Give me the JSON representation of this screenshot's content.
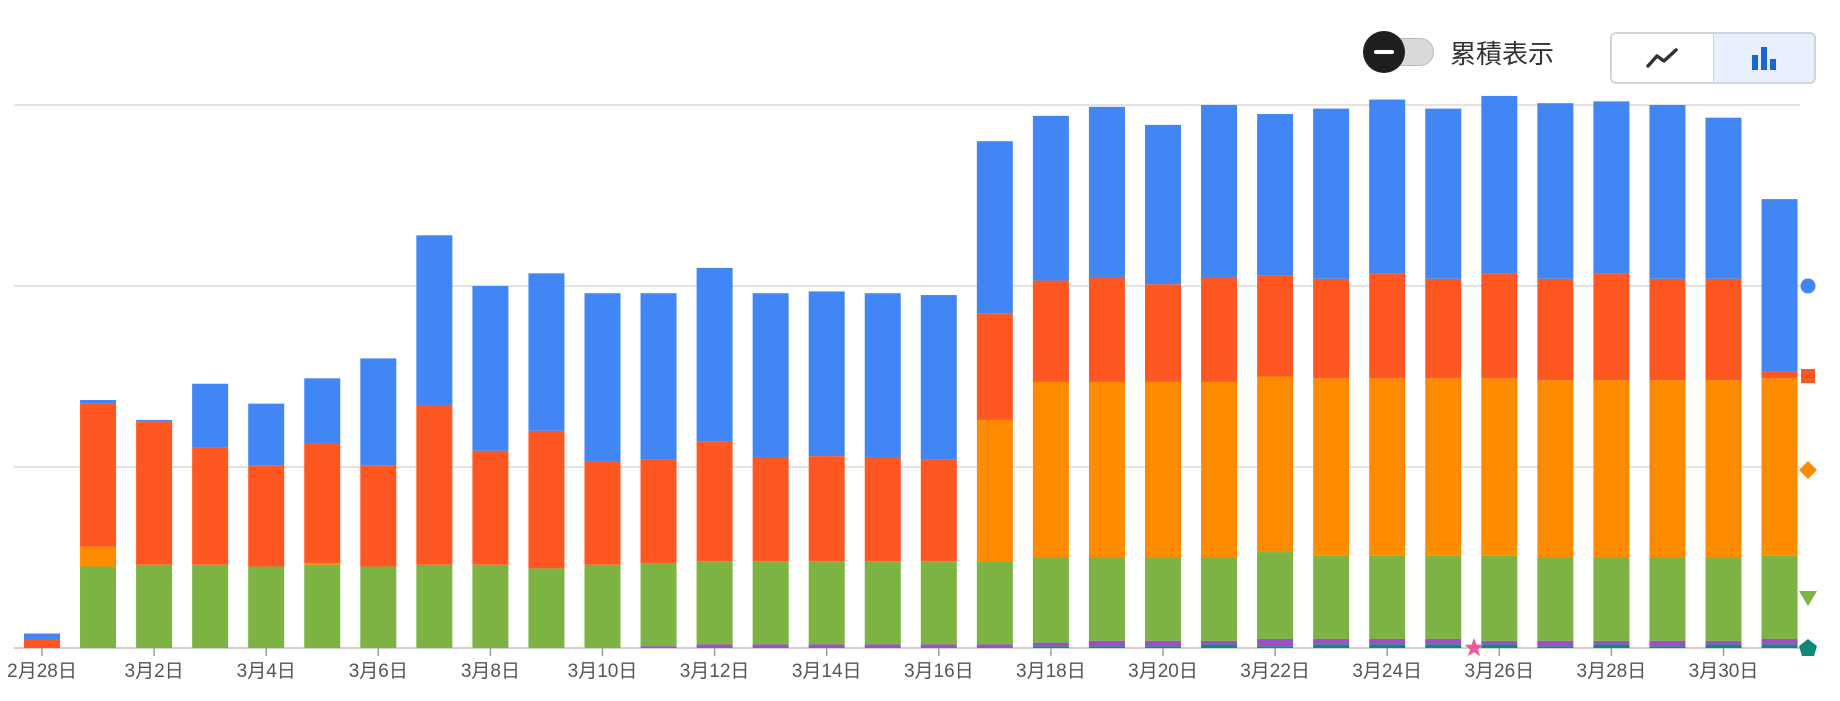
{
  "controls": {
    "cumulative_toggle_label": "累積表示",
    "view_buttons": [
      {
        "icon": "line-chart-icon",
        "active": false
      },
      {
        "icon": "bar-chart-icon",
        "active": true
      }
    ]
  },
  "chart_data": {
    "type": "bar",
    "stacked": true,
    "grid": true,
    "legend": "right-side markers (circle, square, diamond, triangle, pentagon)",
    "categories": [
      "2月28日",
      "3月1日",
      "3月2日",
      "3月3日",
      "3月4日",
      "3月5日",
      "3月6日",
      "3月7日",
      "3月8日",
      "3月9日",
      "3月10日",
      "3月11日",
      "3月12日",
      "3月13日",
      "3月14日",
      "3月15日",
      "3月16日",
      "3月17日",
      "3月18日",
      "3月19日",
      "3月20日",
      "3月21日",
      "3月22日",
      "3月23日",
      "3月24日",
      "3月25日",
      "3月26日",
      "3月27日",
      "3月28日",
      "3月29日",
      "3月30日",
      "3月31日"
    ],
    "tick_labels": [
      "2月28日",
      "3月2日",
      "3月4日",
      "3月6日",
      "3月8日",
      "3月10日",
      "3月12日",
      "3月14日",
      "3月16日",
      "3月18日",
      "3月20日",
      "3月22日",
      "3月24日",
      "3月26日",
      "3月28日",
      "3月30日"
    ],
    "ylim": [
      0,
      300
    ],
    "gridlines": [
      0,
      100,
      200,
      300
    ],
    "series": [
      {
        "marker": "pentagon",
        "color": "#0f8a7a",
        "values": [
          0,
          0,
          0,
          0,
          0,
          0,
          0,
          0,
          0,
          0,
          0,
          0,
          0,
          0,
          0,
          0,
          0,
          0,
          1,
          1,
          1,
          2,
          1,
          2,
          2,
          2,
          2,
          1,
          2,
          1,
          2,
          2
        ]
      },
      {
        "marker": "star",
        "color": "#9c4fc8",
        "values": [
          0,
          0,
          0,
          0,
          0,
          0,
          0,
          0,
          0,
          0,
          0,
          1,
          2,
          2,
          2,
          2,
          2,
          2,
          2,
          3,
          3,
          2,
          4,
          3,
          3,
          3,
          2,
          3,
          2,
          3,
          2,
          3
        ]
      },
      {
        "marker": "triangle",
        "color": "#7cb342",
        "values": [
          0,
          45,
          46,
          46,
          45,
          46,
          45,
          46,
          46,
          44,
          46,
          46,
          46,
          46,
          46,
          46,
          46,
          46,
          47,
          46,
          46,
          46,
          48,
          46,
          46,
          46,
          47,
          46,
          46,
          46,
          46,
          46
        ]
      },
      {
        "marker": "diamond",
        "color": "#ff8c00",
        "values": [
          0,
          11,
          0,
          0,
          0,
          1,
          0,
          0,
          0,
          0,
          0,
          0,
          0,
          0,
          0,
          0,
          0,
          78,
          97,
          97,
          97,
          97,
          97,
          98,
          98,
          98,
          98,
          98,
          98,
          98,
          98,
          98
        ]
      },
      {
        "marker": "square",
        "color": "#ff5722",
        "values": [
          5,
          79,
          79,
          65,
          56,
          66,
          56,
          88,
          63,
          76,
          57,
          57,
          66,
          57,
          58,
          57,
          56,
          59,
          56,
          58,
          54,
          58,
          56,
          55,
          58,
          55,
          58,
          56,
          59,
          56,
          56,
          4
        ]
      },
      {
        "marker": "circle",
        "color": "#4285f4",
        "values": [
          3,
          2,
          1,
          35,
          34,
          36,
          59,
          94,
          91,
          87,
          93,
          92,
          96,
          91,
          91,
          91,
          91,
          95,
          91,
          94,
          88,
          95,
          89,
          94,
          96,
          94,
          98,
          97,
          95,
          96,
          89,
          95
        ]
      }
    ]
  }
}
